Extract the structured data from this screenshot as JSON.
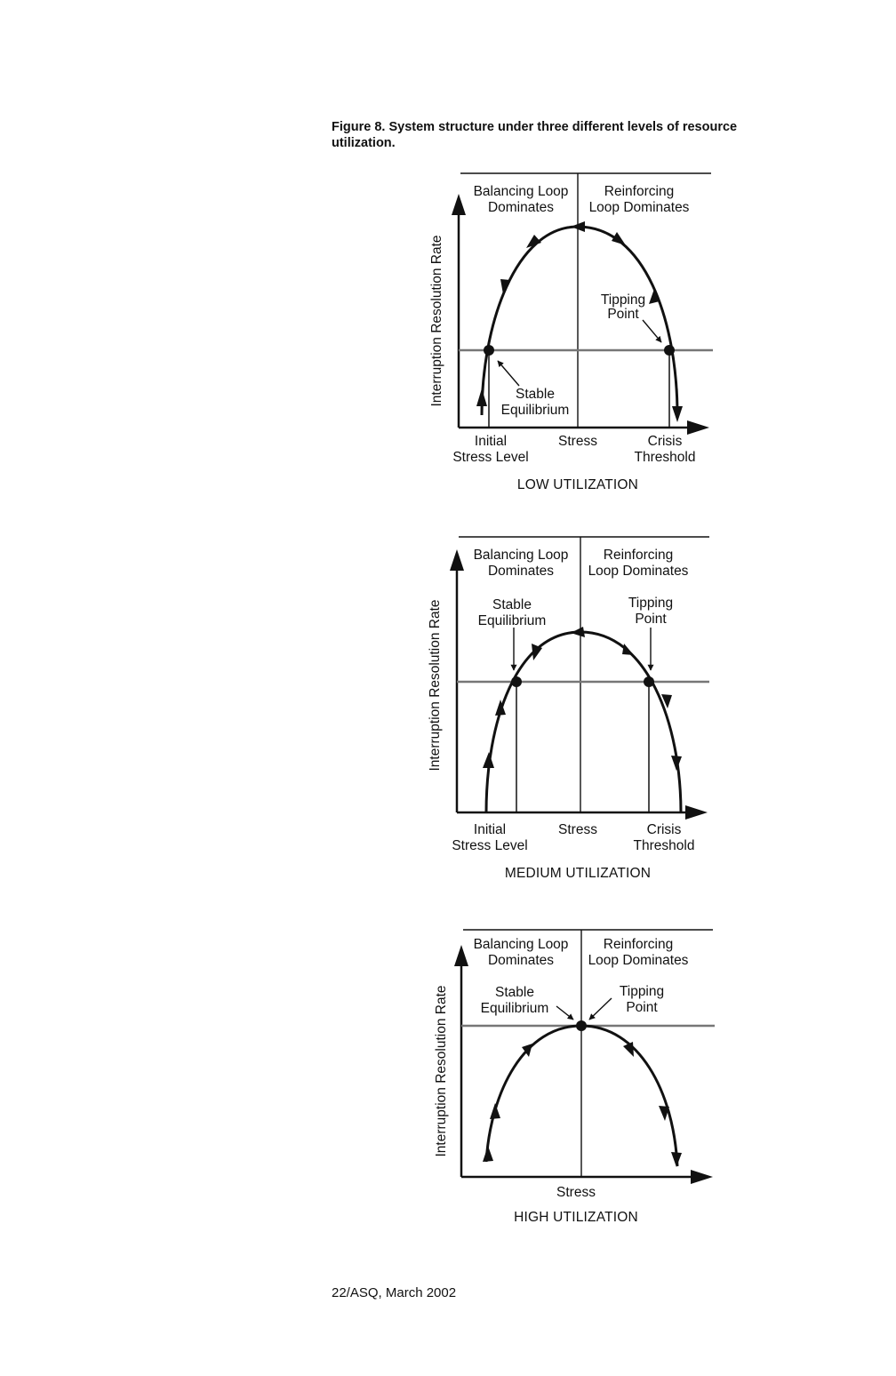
{
  "caption": {
    "label": "Figure 8.",
    "text": "System structure under three different levels of resource utilization."
  },
  "footer": "22/ASQ, March 2002",
  "figures": {
    "low": {
      "y_axis_label": "Interruption Resolution Rate",
      "region_left_1": "Balancing Loop",
      "region_left_2": "Dominates",
      "region_right_1": "Reinforcing",
      "region_right_2": "Loop Dominates",
      "tipping_1": "Tipping",
      "tipping_2": "Point",
      "stable_1": "Stable",
      "stable_2": "Equilibrium",
      "x_initial_1": "Initial",
      "x_initial_2": "Stress Level",
      "x_stress": "Stress",
      "x_crisis_1": "Crisis",
      "x_crisis_2": "Threshold",
      "title": "LOW UTILIZATION"
    },
    "medium": {
      "y_axis_label": "Interruption Resolution Rate",
      "region_left_1": "Balancing Loop",
      "region_left_2": "Dominates",
      "region_right_1": "Reinforcing",
      "region_right_2": "Loop Dominates",
      "stable_1": "Stable",
      "stable_2": "Equilibrium",
      "tipping_1": "Tipping",
      "tipping_2": "Point",
      "x_initial_1": "Initial",
      "x_initial_2": "Stress Level",
      "x_stress": "Stress",
      "x_crisis_1": "Crisis",
      "x_crisis_2": "Threshold",
      "title": "MEDIUM UTILIZATION"
    },
    "high": {
      "y_axis_label": "Interruption Resolution Rate",
      "region_left_1": "Balancing Loop",
      "region_left_2": "Dominates",
      "region_right_1": "Reinforcing",
      "region_right_2": "Loop Dominates",
      "stable_1": "Stable",
      "stable_2": "Equilibrium",
      "tipping_1": "Tipping",
      "tipping_2": "Point",
      "x_stress": "Stress",
      "title": "HIGH UTILIZATION"
    }
  }
}
